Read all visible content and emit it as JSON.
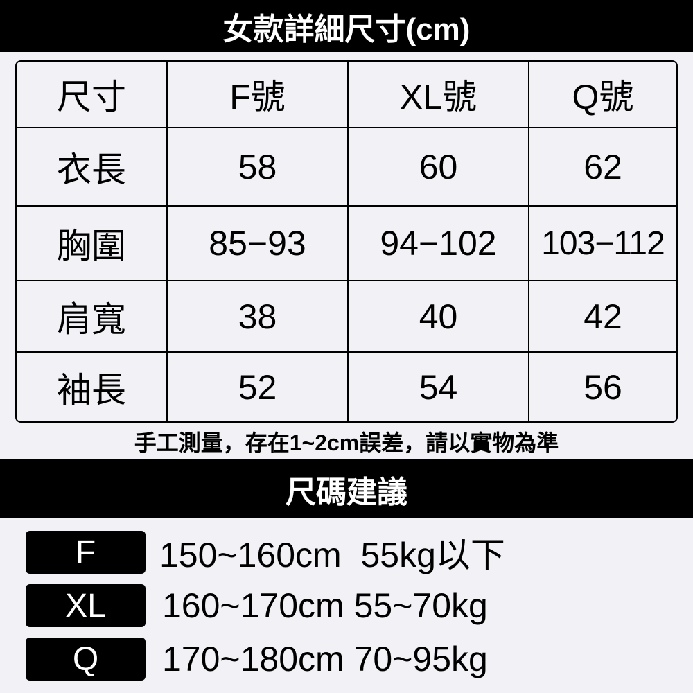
{
  "title": "女款詳細尺寸(cm)",
  "table": {
    "headers": [
      "尺寸",
      "F號",
      "XL號",
      "Q號"
    ],
    "rows": [
      [
        "衣長",
        "58",
        "60",
        "62"
      ],
      [
        "胸圍",
        "85−93",
        "94−102",
        "103−112"
      ],
      [
        "肩寬",
        "38",
        "40",
        "42"
      ],
      [
        "袖長",
        "52",
        "54",
        "56"
      ]
    ]
  },
  "note": "手工測量，存在1~2cm誤差，請以實物為準",
  "recommend_title": "尺碼建議",
  "recommendations": [
    {
      "size": "F",
      "text": "150~160cm  55kg以下"
    },
    {
      "size": "XL",
      "text": "160~170cm 55~70kg"
    },
    {
      "size": "Q",
      "text": "170~180cm 70~95kg"
    }
  ],
  "colors": {
    "background": "#f2f1f5",
    "bar": "#000000"
  }
}
